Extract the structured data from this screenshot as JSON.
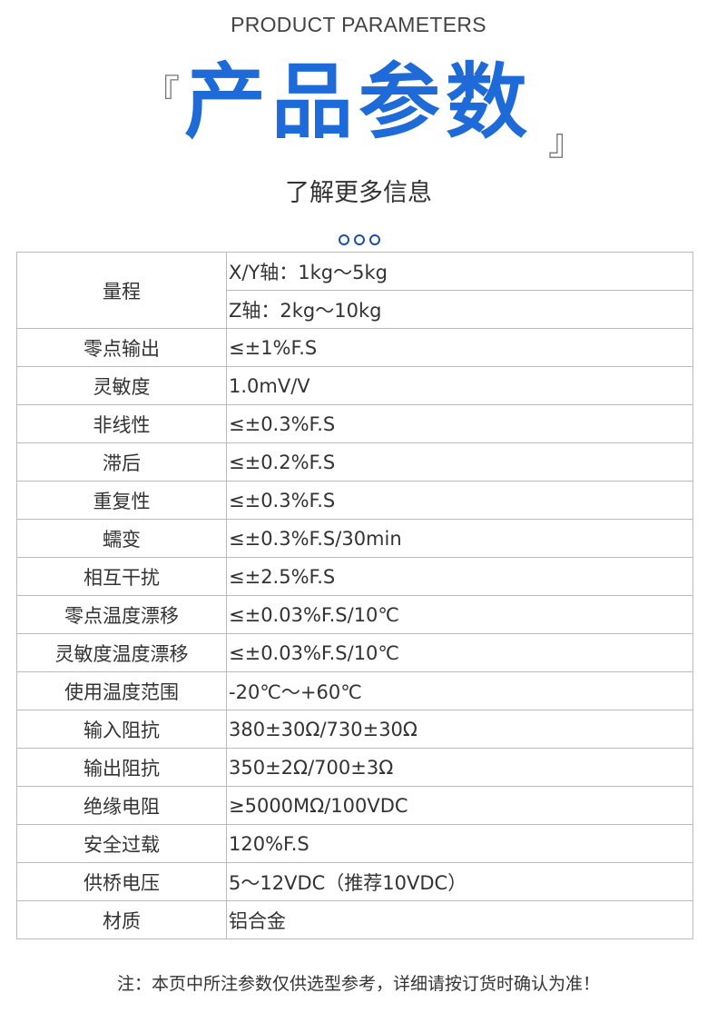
{
  "header": {
    "en_title": "PRODUCT PARAMETERS",
    "title": "产品参数",
    "bracket_left": "『",
    "bracket_right": "』",
    "subtitle": "了解更多信息"
  },
  "range": {
    "label": "量程",
    "values": [
      "X/Y轴：1kg～5kg",
      "Z轴：2kg～10kg"
    ]
  },
  "rows": [
    {
      "k": "零点输出",
      "v": "≤±1%F.S"
    },
    {
      "k": "灵敏度",
      "v": "1.0mV/V"
    },
    {
      "k": "非线性",
      "v": "≤±0.3%F.S"
    },
    {
      "k": "滞后",
      "v": "≤±0.2%F.S"
    },
    {
      "k": "重复性",
      "v": "≤±0.3%F.S"
    },
    {
      "k": "蠕变",
      "v": "≤±0.3%F.S/30min"
    },
    {
      "k": "相互干扰",
      "v": "≤±2.5%F.S"
    },
    {
      "k": "零点温度漂移",
      "v": "≤±0.03%F.S/10℃"
    },
    {
      "k": "灵敏度温度漂移",
      "v": "≤±0.03%F.S/10℃"
    },
    {
      "k": "使用温度范围",
      "v": "-20℃～+60℃"
    },
    {
      "k": "输入阻抗",
      "v": "380±30Ω/730±30Ω"
    },
    {
      "k": "输出阻抗",
      "v": "350±2Ω/700±3Ω"
    },
    {
      "k": "绝缘电阻",
      "v": "≥5000MΩ/100VDC"
    },
    {
      "k": "安全过载",
      "v": "120%F.S"
    },
    {
      "k": "供桥电压",
      "v": "5～12VDC（推荐10VDC）"
    },
    {
      "k": "材质",
      "v": "铝合金"
    }
  ],
  "note": "注：本页中所注参数仅供选型参考，详细请按订货时确认为准！"
}
